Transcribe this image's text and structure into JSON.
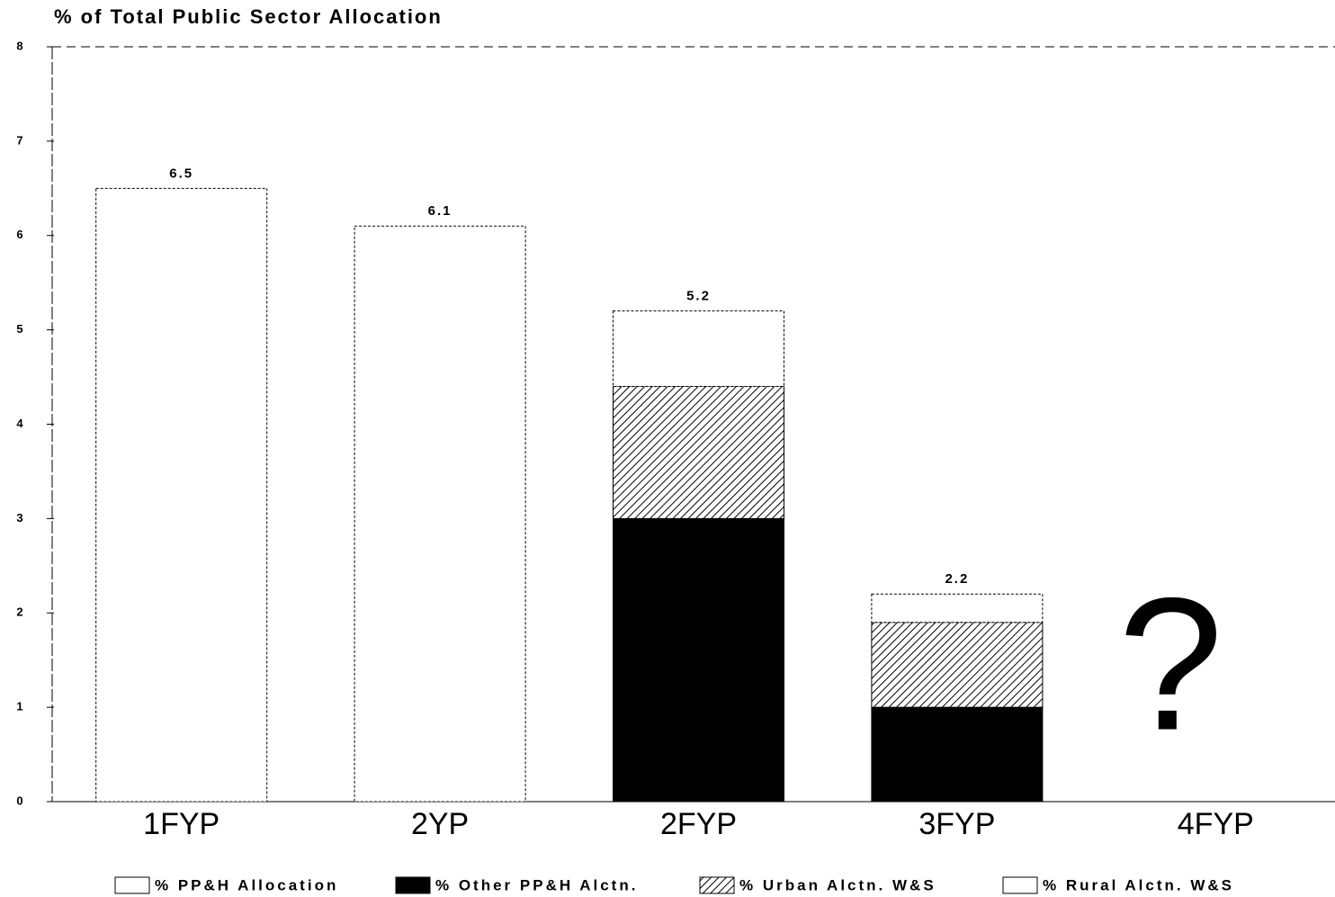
{
  "chart_data": {
    "type": "stacked_bar",
    "title": "% of Total Public Sector Allocation",
    "categories": [
      "1FYP",
      "2YP",
      "2FYP",
      "3FYP",
      "4FYP"
    ],
    "series": [
      {
        "name": "% PP&H Allocation",
        "color": "#ffffff",
        "values": [
          6.5,
          6.1,
          null,
          null,
          null
        ]
      },
      {
        "name": "% Other PP&H Alctn.",
        "color": "#000000",
        "values": [
          null,
          null,
          3.0,
          1.0,
          null
        ]
      },
      {
        "name": "% Urban Alctn. W&S",
        "color": "#ffffff",
        "pattern": "hatch",
        "values": [
          null,
          null,
          1.4,
          0.9,
          null
        ]
      },
      {
        "name": "% Rural Alctn. W&S",
        "color": "#ffffff",
        "values": [
          null,
          null,
          0.8,
          0.3,
          null
        ]
      }
    ],
    "totals": [
      6.5,
      6.1,
      5.2,
      2.2,
      null
    ],
    "annotation": "?",
    "ylim": [
      0,
      8
    ],
    "yticks": [
      0,
      1,
      2,
      3,
      4,
      5,
      6,
      7,
      8
    ],
    "grid": false
  }
}
